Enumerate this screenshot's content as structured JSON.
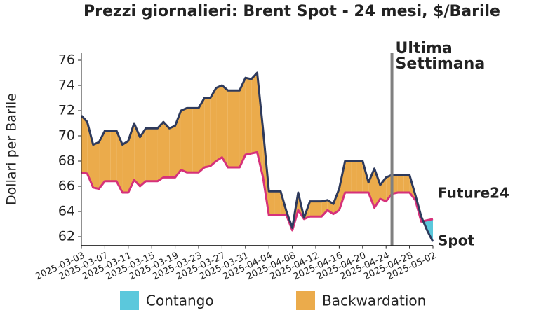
{
  "chart_data": {
    "type": "line",
    "title": "Prezzi giornalieri: Brent Spot - 24 mesi, $/Barile",
    "y_label": "Dollari per Barile",
    "x": [
      "2025-03-03",
      "2025-03-04",
      "2025-03-05",
      "2025-03-06",
      "2025-03-07",
      "2025-03-08",
      "2025-03-09",
      "2025-03-10",
      "2025-03-11",
      "2025-03-12",
      "2025-03-13",
      "2025-03-14",
      "2025-03-15",
      "2025-03-16",
      "2025-03-17",
      "2025-03-18",
      "2025-03-19",
      "2025-03-20",
      "2025-03-21",
      "2025-03-22",
      "2025-03-23",
      "2025-03-24",
      "2025-03-25",
      "2025-03-26",
      "2025-03-27",
      "2025-03-28",
      "2025-03-29",
      "2025-03-30",
      "2025-03-31",
      "2025-04-01",
      "2025-04-02",
      "2025-04-03",
      "2025-04-04",
      "2025-04-05",
      "2025-04-06",
      "2025-04-07",
      "2025-04-08",
      "2025-04-09",
      "2025-04-10",
      "2025-04-11",
      "2025-04-12",
      "2025-04-13",
      "2025-04-14",
      "2025-04-15",
      "2025-04-16",
      "2025-04-17",
      "2025-04-18",
      "2025-04-19",
      "2025-04-20",
      "2025-04-21",
      "2025-04-22",
      "2025-04-23",
      "2025-04-24",
      "2025-04-25",
      "2025-04-26",
      "2025-04-27",
      "2025-04-28",
      "2025-04-29",
      "2025-04-30",
      "2025-05-01",
      "2025-05-02"
    ],
    "series": [
      {
        "name": "Spot",
        "color": "#2e3a5c",
        "values": [
          71.6,
          71.1,
          69.3,
          69.5,
          70.4,
          70.4,
          70.4,
          69.3,
          69.6,
          71.0,
          69.9,
          70.6,
          70.6,
          70.6,
          71.1,
          70.6,
          70.8,
          72.0,
          72.2,
          72.2,
          72.2,
          73.0,
          73.0,
          73.8,
          74.0,
          73.6,
          73.6,
          73.6,
          74.6,
          74.5,
          75.0,
          70.5,
          65.6,
          65.6,
          65.6,
          64.0,
          62.7,
          65.5,
          63.5,
          64.8,
          64.8,
          64.8,
          64.9,
          64.6,
          65.8,
          68.0,
          68.0,
          68.0,
          68.0,
          66.3,
          67.4,
          66.1,
          66.7,
          66.9,
          66.9,
          66.9,
          66.9,
          65.3,
          63.6,
          62.5,
          61.6
        ]
      },
      {
        "name": "Future24",
        "color": "#d6317a",
        "values": [
          67.1,
          67.0,
          65.9,
          65.8,
          66.4,
          66.4,
          66.4,
          65.5,
          65.5,
          66.5,
          66.0,
          66.4,
          66.4,
          66.4,
          66.7,
          66.7,
          66.7,
          67.3,
          67.1,
          67.1,
          67.1,
          67.5,
          67.6,
          68.0,
          68.3,
          67.5,
          67.5,
          67.5,
          68.5,
          68.6,
          68.7,
          66.7,
          63.7,
          63.7,
          63.7,
          63.7,
          62.5,
          64.1,
          63.4,
          63.6,
          63.6,
          63.6,
          64.1,
          63.8,
          64.1,
          65.5,
          65.5,
          65.5,
          65.5,
          65.5,
          64.3,
          65.0,
          64.8,
          65.4,
          65.5,
          65.5,
          65.5,
          64.9,
          63.2,
          63.3,
          63.4
        ]
      }
    ],
    "fills": [
      {
        "name": "Contango",
        "color": "#5bc8dc"
      },
      {
        "name": "Backwardation",
        "color": "#ebab4b"
      }
    ],
    "annotation": {
      "x": "2025-04-25",
      "label": [
        "Ultima",
        "Settimana"
      ],
      "color": "#808080"
    },
    "xlim": [
      "2025-03-03",
      "2025-05-02"
    ],
    "xticks": [
      "2025-03-03",
      "2025-03-07",
      "2025-03-11",
      "2025-03-15",
      "2025-03-19",
      "2025-03-23",
      "2025-03-27",
      "2025-03-31",
      "2025-04-04",
      "2025-04-08",
      "2025-04-12",
      "2025-04-16",
      "2025-04-20",
      "2025-04-24",
      "2025-04-28",
      "2025-05-02"
    ],
    "ylim": [
      61.3,
      76.6
    ],
    "yticks": [
      62,
      64,
      66,
      68,
      70,
      72,
      74,
      76
    ],
    "title_color": "#1aa7c9"
  }
}
